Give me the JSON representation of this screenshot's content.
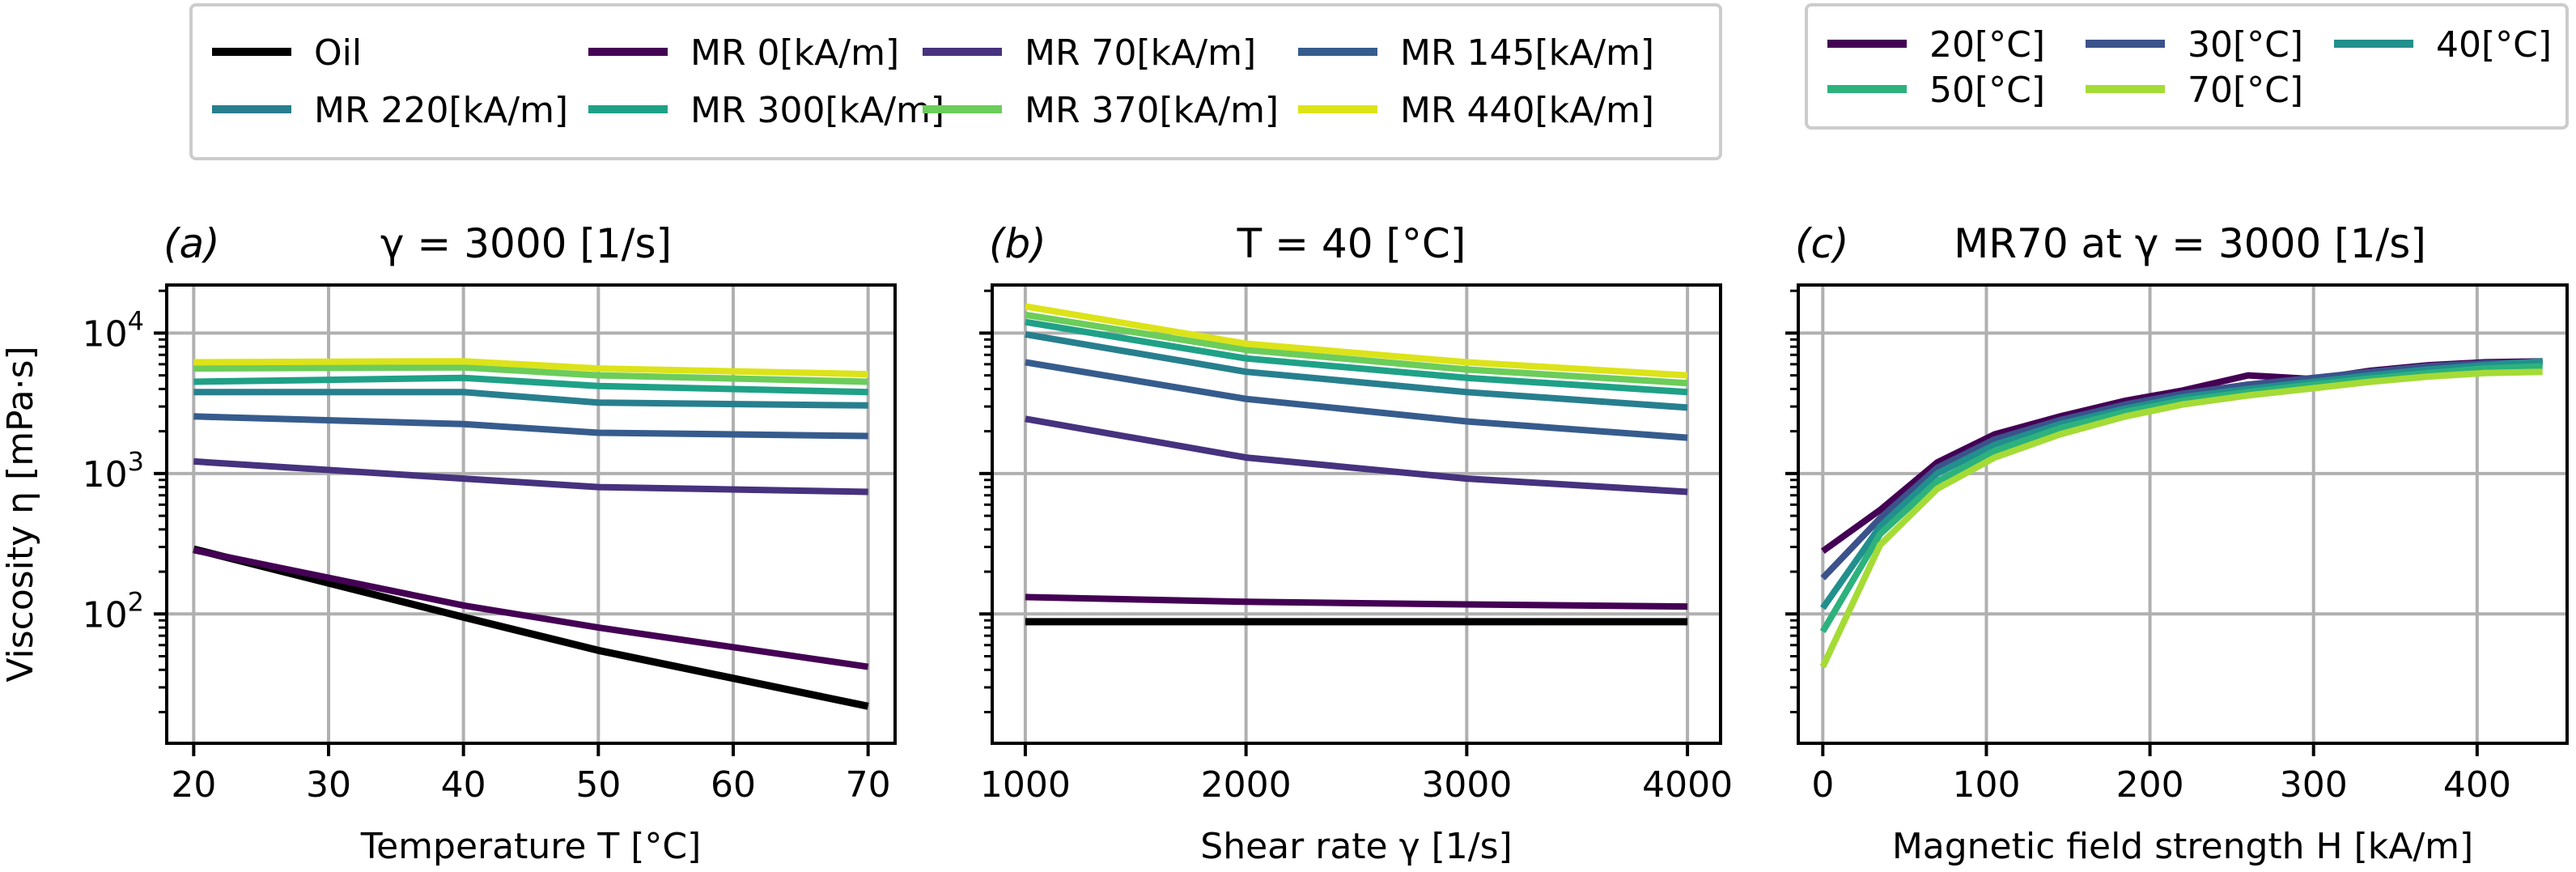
{
  "chart_data": [
    {
      "panel": "(a)",
      "type": "line",
      "title": "γ = 3000 [1/s]",
      "xlabel": "Temperature T [°C]",
      "ylabel": "Viscosity η [mPa·s]",
      "xlim": [
        18,
        72
      ],
      "ylim": [
        12,
        22000
      ],
      "yscale": "log",
      "xticks": [
        20,
        30,
        40,
        50,
        60,
        70
      ],
      "yticks": [
        {
          "value": 100,
          "label": "10",
          "exp": "2"
        },
        {
          "value": 1000,
          "label": "10",
          "exp": "3"
        },
        {
          "value": 10000,
          "label": "10",
          "exp": "4"
        }
      ],
      "x": [
        20,
        40,
        50,
        70
      ],
      "series": [
        {
          "name": "Oil",
          "values": [
            290,
            95,
            55,
            22
          ]
        },
        {
          "name": "MR 0[kA/m]",
          "values": [
            285,
            115,
            80,
            42
          ]
        },
        {
          "name": "MR 70[kA/m]",
          "values": [
            1220,
            920,
            800,
            740
          ]
        },
        {
          "name": "MR 145[kA/m]",
          "values": [
            2550,
            2250,
            1950,
            1850
          ]
        },
        {
          "name": "MR 220[kA/m]",
          "values": [
            3800,
            3800,
            3200,
            3050
          ]
        },
        {
          "name": "MR 300[kA/m]",
          "values": [
            4500,
            4800,
            4200,
            3800
          ]
        },
        {
          "name": "MR 370[kA/m]",
          "values": [
            5600,
            5700,
            5000,
            4500
          ]
        },
        {
          "name": "MR 440[kA/m]",
          "values": [
            6200,
            6300,
            5600,
            5100
          ]
        }
      ]
    },
    {
      "panel": "(b)",
      "type": "line",
      "title": "T = 40 [°C]",
      "xlabel": "Shear rate γ [1/s]",
      "ylabel": "",
      "xlim": [
        850,
        4150
      ],
      "ylim": [
        12,
        22000
      ],
      "yscale": "log",
      "xticks": [
        1000,
        2000,
        3000,
        4000
      ],
      "x": [
        1000,
        2000,
        3000,
        4000
      ],
      "series": [
        {
          "name": "Oil",
          "values": [
            88,
            88,
            88,
            88
          ]
        },
        {
          "name": "MR 0[kA/m]",
          "values": [
            132,
            122,
            117,
            113
          ]
        },
        {
          "name": "MR 70[kA/m]",
          "values": [
            2450,
            1300,
            920,
            740
          ]
        },
        {
          "name": "MR 145[kA/m]",
          "values": [
            6200,
            3400,
            2350,
            1800
          ]
        },
        {
          "name": "MR 220[kA/m]",
          "values": [
            9800,
            5300,
            3800,
            2950
          ]
        },
        {
          "name": "MR 300[kA/m]",
          "values": [
            12000,
            6600,
            4800,
            3800
          ]
        },
        {
          "name": "MR 370[kA/m]",
          "values": [
            13500,
            7600,
            5500,
            4400
          ]
        },
        {
          "name": "MR 440[kA/m]",
          "values": [
            15500,
            8400,
            6200,
            5000
          ]
        }
      ]
    },
    {
      "panel": "(c)",
      "type": "line",
      "title": "MR70 at γ = 3000 [1/s]",
      "xlabel": "Magnetic field strength H [kA/m]",
      "ylabel": "",
      "xlim": [
        -15,
        455
      ],
      "ylim": [
        12,
        22000
      ],
      "yscale": "log",
      "xticks": [
        0,
        100,
        200,
        300,
        400
      ],
      "x": [
        0,
        35,
        70,
        105,
        145,
        185,
        220,
        260,
        300,
        335,
        370,
        405,
        440
      ],
      "series": [
        {
          "name": "20[°C]",
          "values": [
            280,
            550,
            1200,
            1900,
            2550,
            3300,
            3900,
            5000,
            4700,
            5400,
            5900,
            6200,
            6300
          ]
        },
        {
          "name": "30[°C]",
          "values": [
            180,
            480,
            1100,
            1750,
            2400,
            3100,
            3700,
            4300,
            4800,
            5300,
            5800,
            6100,
            6200
          ]
        },
        {
          "name": "40[°C]",
          "values": [
            110,
            420,
            1000,
            1600,
            2250,
            2900,
            3500,
            4000,
            4500,
            5000,
            5500,
            5900,
            6300
          ]
        },
        {
          "name": "50[°C]",
          "values": [
            75,
            370,
            880,
            1450,
            2100,
            2750,
            3300,
            3800,
            4300,
            4750,
            5200,
            5600,
            5800
          ]
        },
        {
          "name": "70[°C]",
          "values": [
            42,
            310,
            780,
            1300,
            1900,
            2550,
            3100,
            3600,
            4050,
            4500,
            4900,
            5200,
            5300
          ]
        }
      ]
    }
  ],
  "legends": {
    "main": [
      {
        "label": "Oil",
        "color": "#000000"
      },
      {
        "label": "MR 0[kA/m]",
        "color": "#440154"
      },
      {
        "label": "MR 70[kA/m]",
        "color": "#46327e"
      },
      {
        "label": "MR 145[kA/m]",
        "color": "#365c8d"
      },
      {
        "label": "MR 220[kA/m]",
        "color": "#277f8e"
      },
      {
        "label": "MR 300[kA/m]",
        "color": "#1fa187"
      },
      {
        "label": "MR 370[kA/m]",
        "color": "#6ccd5a"
      },
      {
        "label": "MR 440[kA/m]",
        "color": "#dce319"
      }
    ],
    "temperature": [
      {
        "label": "20[°C]",
        "color": "#440154"
      },
      {
        "label": "30[°C]",
        "color": "#3b528b"
      },
      {
        "label": "40[°C]",
        "color": "#21908d"
      },
      {
        "label": "50[°C]",
        "color": "#2db27d"
      },
      {
        "label": "70[°C]",
        "color": "#a5db36"
      }
    ]
  },
  "series_colors": {
    "Oil": "#000000",
    "MR 0[kA/m]": "#440154",
    "MR 70[kA/m]": "#46327e",
    "MR 145[kA/m]": "#365c8d",
    "MR 220[kA/m]": "#277f8e",
    "MR 300[kA/m]": "#1fa187",
    "MR 370[kA/m]": "#6ccd5a",
    "MR 440[kA/m]": "#dce319",
    "20[°C]": "#440154",
    "30[°C]": "#3b528b",
    "40[°C]": "#21908d",
    "50[°C]": "#2db27d",
    "70[°C]": "#a5db36"
  }
}
